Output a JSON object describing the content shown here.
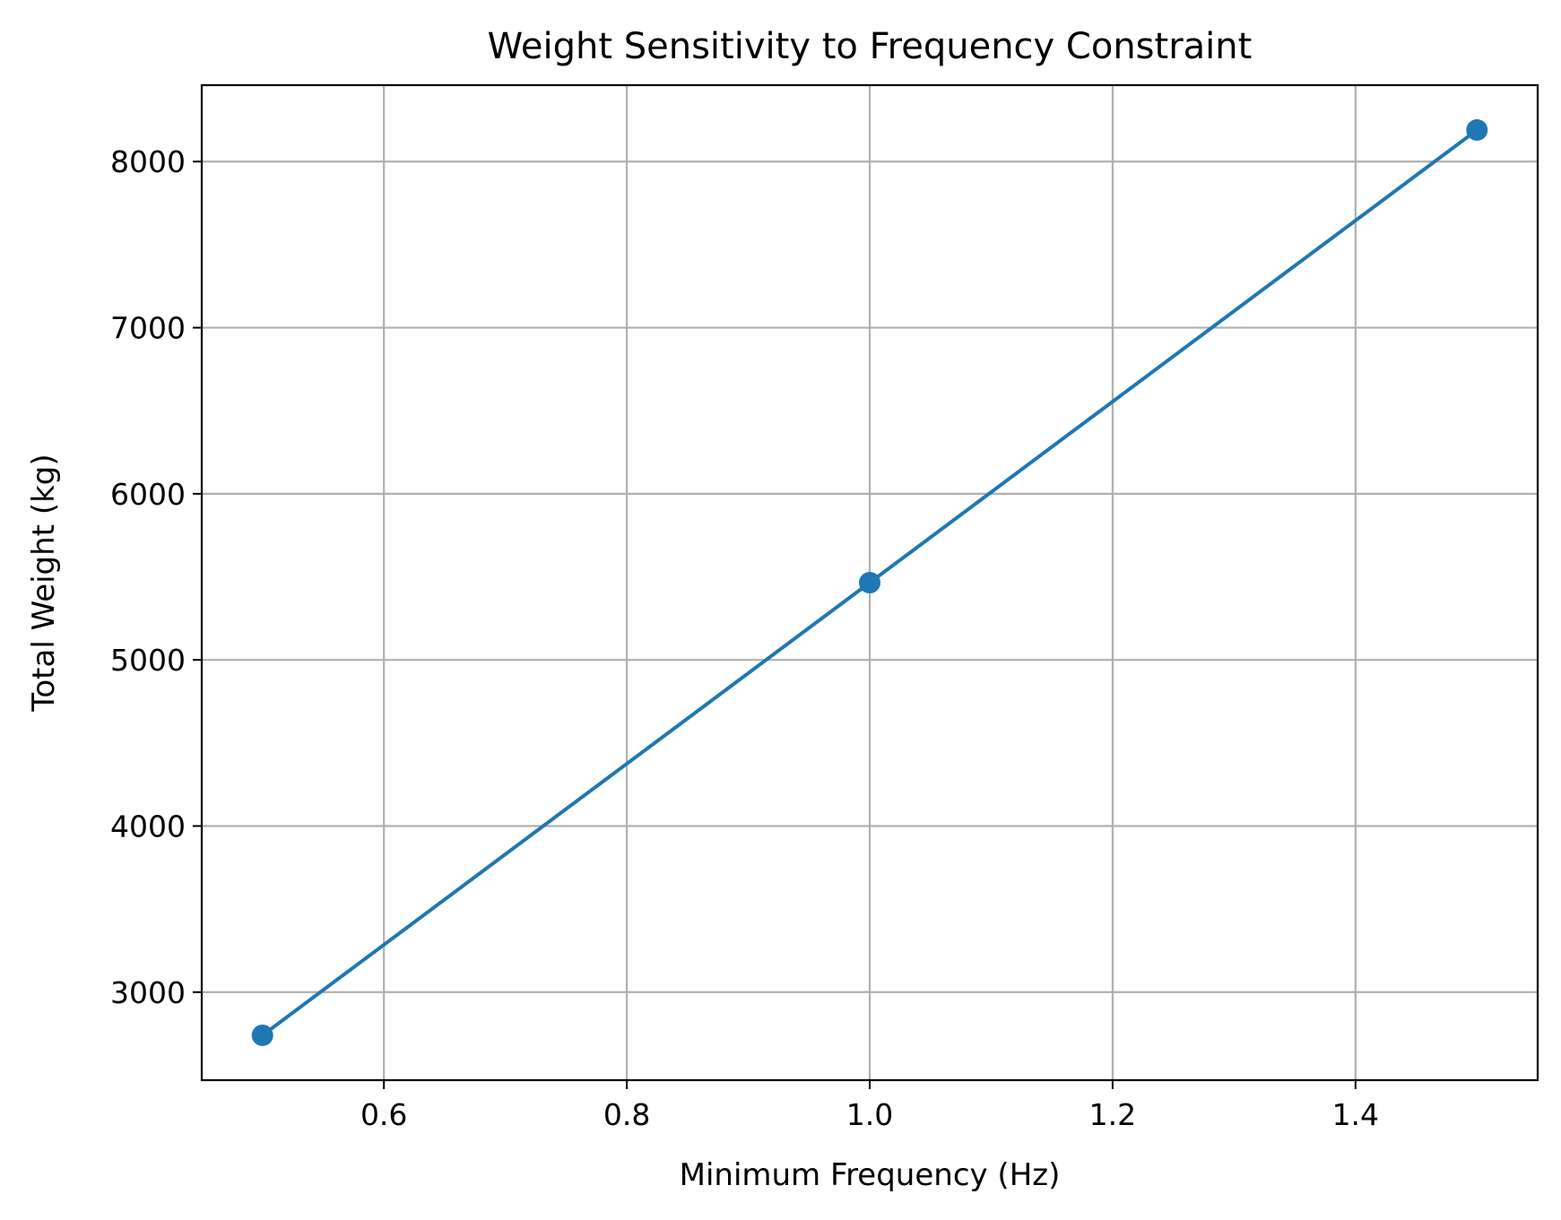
{
  "chart_data": {
    "type": "line",
    "title": "Weight Sensitivity to Frequency Constraint",
    "xlabel": "Minimum Frequency (Hz)",
    "ylabel": "Total Weight (kg)",
    "x": [
      0.5,
      1.0,
      1.5
    ],
    "series": [
      {
        "values": [
          2740,
          5465,
          8190
        ],
        "color": "#1f77b4",
        "marker": "circle"
      }
    ],
    "xlim": [
      0.45,
      1.55
    ],
    "ylim": [
      2470,
      8460
    ],
    "xticks": [
      0.6,
      0.8,
      1.0,
      1.2,
      1.4
    ],
    "xtick_labels": [
      "0.6",
      "0.8",
      "1.0",
      "1.2",
      "1.4"
    ],
    "yticks": [
      3000,
      4000,
      5000,
      6000,
      7000,
      8000
    ],
    "ytick_labels": [
      "3000",
      "4000",
      "5000",
      "6000",
      "7000",
      "8000"
    ],
    "grid": true,
    "legend": false
  }
}
